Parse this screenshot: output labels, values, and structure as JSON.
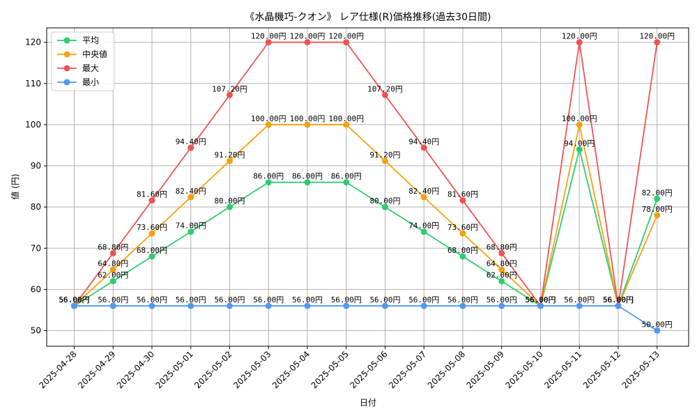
{
  "chart_data": {
    "type": "line",
    "title": "《水晶機巧-クオン》 レア仕様(R)価格推移(過去30日間)",
    "xlabel": "日付",
    "ylabel": "値 (円)",
    "ylim": [
      46.2,
      123.5
    ],
    "yticks": [
      50,
      60,
      70,
      80,
      90,
      100,
      110,
      120
    ],
    "grid": true,
    "legend_position": "top-left",
    "value_suffix": "円",
    "categories": [
      "2025-04-28",
      "2025-04-29",
      "2025-04-30",
      "2025-05-01",
      "2025-05-02",
      "2025-05-03",
      "2025-05-04",
      "2025-05-05",
      "2025-05-06",
      "2025-05-07",
      "2025-05-08",
      "2025-05-09",
      "2025-05-10",
      "2025-05-11",
      "2025-05-12",
      "2025-05-13"
    ],
    "series": [
      {
        "name": "平均",
        "color": "#2ecc71",
        "values": [
          56.0,
          62.0,
          68.0,
          74.0,
          80.0,
          86.0,
          86.0,
          86.0,
          80.0,
          74.0,
          68.0,
          62.0,
          56.0,
          94.0,
          56.0,
          82.0
        ]
      },
      {
        "name": "中央値",
        "color": "#f5a00f",
        "values": [
          56.0,
          64.8,
          73.6,
          82.4,
          91.2,
          100.0,
          100.0,
          100.0,
          91.2,
          82.4,
          73.6,
          64.8,
          56.0,
          100.0,
          56.0,
          78.0
        ]
      },
      {
        "name": "最大",
        "color": "#ef5350",
        "values": [
          56.0,
          68.8,
          81.6,
          94.4,
          107.2,
          120.0,
          120.0,
          120.0,
          107.2,
          94.4,
          81.6,
          68.8,
          56.0,
          120.0,
          56.0,
          120.0
        ]
      },
      {
        "name": "最小",
        "color": "#4e9af1",
        "values": [
          56.0,
          56.0,
          56.0,
          56.0,
          56.0,
          56.0,
          56.0,
          56.0,
          56.0,
          56.0,
          56.0,
          56.0,
          56.0,
          56.0,
          56.0,
          50.0
        ]
      }
    ]
  }
}
